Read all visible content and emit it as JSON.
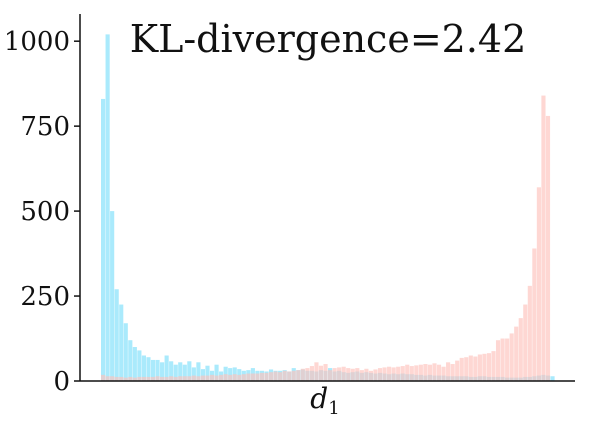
{
  "chart_data": {
    "type": "bar",
    "title": "KL-divergence=2.42",
    "xlabel_main": "d",
    "xlabel_sub": "1",
    "ylabel": "",
    "xlim": [
      0,
      1
    ],
    "ylim": [
      0,
      1080
    ],
    "yticks": [
      {
        "value": 0,
        "label": "0"
      },
      {
        "value": 250,
        "label": "250"
      },
      {
        "value": 500,
        "label": "500"
      },
      {
        "value": 750,
        "label": "750"
      },
      {
        "value": 1000,
        "label": "1000"
      }
    ],
    "bin_start": 0.0,
    "bin_width": 0.01,
    "series": [
      {
        "color": "#8ee3fb",
        "values": [
          830,
          1020,
          500,
          270,
          225,
          170,
          120,
          100,
          90,
          75,
          70,
          62,
          62,
          55,
          75,
          58,
          48,
          55,
          48,
          58,
          40,
          55,
          35,
          45,
          30,
          48,
          28,
          42,
          38,
          40,
          35,
          30,
          32,
          38,
          30,
          30,
          28,
          34,
          30,
          30,
          32,
          28,
          38,
          32,
          34,
          30,
          30,
          28,
          32,
          30,
          38,
          28,
          30,
          26,
          24,
          26,
          28,
          24,
          26,
          24,
          22,
          24,
          22,
          20,
          22,
          20,
          22,
          20,
          20,
          18,
          18,
          16,
          18,
          16,
          16,
          16,
          14,
          14,
          14,
          14,
          14,
          12,
          12,
          14,
          14,
          12,
          12,
          12,
          12,
          10,
          10,
          10,
          10,
          12,
          12,
          14,
          16,
          18,
          16,
          14
        ]
      },
      {
        "color": "#fdc1bc",
        "values": [
          18,
          14,
          14,
          12,
          12,
          10,
          12,
          10,
          12,
          12,
          12,
          12,
          14,
          12,
          12,
          14,
          12,
          14,
          14,
          14,
          16,
          14,
          16,
          16,
          18,
          16,
          18,
          20,
          18,
          20,
          18,
          20,
          22,
          22,
          22,
          24,
          24,
          26,
          28,
          26,
          30,
          28,
          30,
          32,
          36,
          38,
          44,
          55,
          45,
          50,
          32,
          38,
          40,
          42,
          38,
          36,
          38,
          32,
          36,
          30,
          34,
          38,
          40,
          42,
          40,
          42,
          44,
          48,
          44,
          46,
          48,
          50,
          48,
          52,
          48,
          42,
          55,
          50,
          60,
          68,
          70,
          75,
          72,
          78,
          80,
          82,
          88,
          120,
          125,
          125,
          140,
          160,
          185,
          225,
          280,
          390,
          570,
          840,
          780,
          0
        ]
      }
    ]
  }
}
